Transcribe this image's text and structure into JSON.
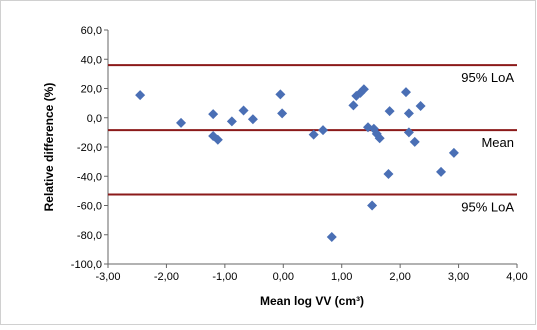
{
  "chart_data": {
    "type": "scatter",
    "title": "",
    "xlabel": "Mean log VV (cm³)",
    "ylabel": "Relative difference (%)",
    "xlim": [
      -3.0,
      4.0
    ],
    "ylim": [
      -100.0,
      60.0
    ],
    "x_ticks": [
      -3.0,
      -2.0,
      -1.0,
      0.0,
      1.0,
      2.0,
      3.0,
      4.0
    ],
    "x_tick_labels": [
      "-3,00",
      "-2,00",
      "-1,00",
      "0,00",
      "1,00",
      "2,00",
      "3,00",
      "4,00"
    ],
    "y_ticks": [
      60.0,
      40.0,
      20.0,
      0.0,
      -20.0,
      -40.0,
      -60.0,
      -80.0,
      -100.0
    ],
    "y_tick_labels": [
      "60,0",
      "40,0",
      "20,0",
      "0,0",
      "-20,0",
      "-40,0",
      "-60,0",
      "-80,0",
      "-100,0"
    ],
    "grid": false,
    "legend": "none",
    "marker_color": "#4a6fb5",
    "line_color": "#8b1a1a",
    "reference_lines": [
      {
        "label": "95% LoA",
        "y": 36.0
      },
      {
        "label": "Mean",
        "y": -8.5
      },
      {
        "label": "95% LoA",
        "y": -52.5
      }
    ],
    "points": [
      {
        "x": -2.45,
        "y": 15.5
      },
      {
        "x": -1.75,
        "y": -3.5
      },
      {
        "x": -1.2,
        "y": 2.5
      },
      {
        "x": -1.2,
        "y": -12.5
      },
      {
        "x": -1.12,
        "y": -15.0
      },
      {
        "x": -0.88,
        "y": -2.5
      },
      {
        "x": -0.68,
        "y": 5.0
      },
      {
        "x": -0.52,
        "y": -1.0
      },
      {
        "x": -0.05,
        "y": 16.0
      },
      {
        "x": -0.02,
        "y": 3.0
      },
      {
        "x": 0.52,
        "y": -11.5
      },
      {
        "x": 0.68,
        "y": -8.5
      },
      {
        "x": 0.83,
        "y": -81.5
      },
      {
        "x": 1.2,
        "y": 8.5
      },
      {
        "x": 1.25,
        "y": 15.0
      },
      {
        "x": 1.32,
        "y": 17.0
      },
      {
        "x": 1.38,
        "y": 19.5
      },
      {
        "x": 1.45,
        "y": -6.5
      },
      {
        "x": 1.55,
        "y": -7.5
      },
      {
        "x": 1.52,
        "y": -60.0
      },
      {
        "x": 1.6,
        "y": -11.0
      },
      {
        "x": 1.65,
        "y": -14.0
      },
      {
        "x": 1.8,
        "y": -38.5
      },
      {
        "x": 1.82,
        "y": 4.5
      },
      {
        "x": 2.1,
        "y": 17.5
      },
      {
        "x": 2.15,
        "y": 3.0
      },
      {
        "x": 2.15,
        "y": -10.0
      },
      {
        "x": 2.25,
        "y": -16.5
      },
      {
        "x": 2.35,
        "y": 8.0
      },
      {
        "x": 2.7,
        "y": -37.0
      },
      {
        "x": 2.92,
        "y": -24.0
      }
    ]
  }
}
